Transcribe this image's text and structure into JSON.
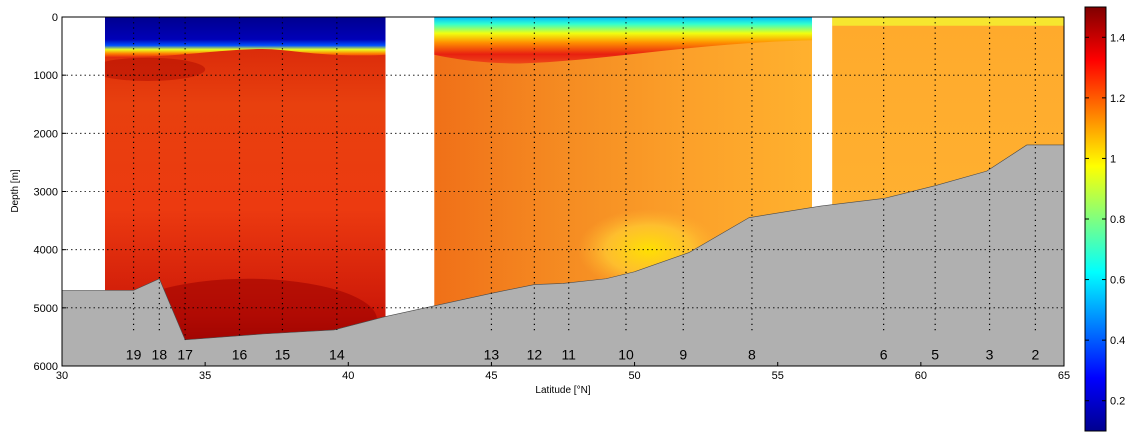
{
  "chart_data": {
    "type": "heatmap",
    "title": "",
    "xlabel": "Latitude [°N]",
    "ylabel": "Depth [m]",
    "xlim": [
      30,
      65
    ],
    "ylim": [
      0,
      6000
    ],
    "y_reversed": true,
    "x_ticks": [
      30,
      35,
      40,
      45,
      50,
      55,
      60,
      65
    ],
    "y_ticks": [
      0,
      1000,
      2000,
      3000,
      4000,
      5000,
      6000
    ],
    "grid": "dotted",
    "colorbar": {
      "colormap": "jet",
      "range": [
        0.1,
        1.5
      ],
      "ticks": [
        "0.2",
        "0.4",
        "0.6",
        "0.8",
        "1",
        "1.2",
        "1.4"
      ],
      "tick_values": [
        0.2,
        0.4,
        0.6,
        0.8,
        1.0,
        1.2,
        1.4
      ]
    },
    "bottom_profile": [
      [
        30,
        4700
      ],
      [
        32.5,
        4700
      ],
      [
        33.4,
        4500
      ],
      [
        34.3,
        5550
      ],
      [
        37,
        5450
      ],
      [
        39.5,
        5380
      ],
      [
        41.3,
        5150
      ],
      [
        45,
        4750
      ],
      [
        46.5,
        4600
      ],
      [
        47.5,
        4580
      ],
      [
        49,
        4500
      ],
      [
        50,
        4380
      ],
      [
        51.9,
        4050
      ],
      [
        54,
        3450
      ],
      [
        56.5,
        3250
      ],
      [
        58.7,
        3120
      ],
      [
        60.5,
        2900
      ],
      [
        62.3,
        2650
      ],
      [
        63.7,
        2200
      ],
      [
        65,
        2200
      ]
    ],
    "data_gaps": [
      [
        29.9,
        31.5
      ],
      [
        41.3,
        43
      ],
      [
        56.2,
        56.9
      ]
    ],
    "stations": [
      {
        "label": "19",
        "lat": 32.5,
        "bottom": 5400
      },
      {
        "label": "18",
        "lat": 33.4,
        "bottom": 5400
      },
      {
        "label": "17",
        "lat": 34.3,
        "bottom": 5550
      },
      {
        "label": "16",
        "lat": 36.2,
        "bottom": 5480
      },
      {
        "label": "15",
        "lat": 37.7,
        "bottom": 5440
      },
      {
        "label": "14",
        "lat": 39.6,
        "bottom": 5380
      },
      {
        "label": "13",
        "lat": 45.0,
        "bottom": 5400
      },
      {
        "label": "12",
        "lat": 46.5,
        "bottom": 5400
      },
      {
        "label": "11",
        "lat": 47.7,
        "bottom": 5400
      },
      {
        "label": "10",
        "lat": 49.7,
        "bottom": 5400
      },
      {
        "label": "9",
        "lat": 51.7,
        "bottom": 5400
      },
      {
        "label": "8",
        "lat": 54.1,
        "bottom": 5400
      },
      {
        "label": "6",
        "lat": 58.7,
        "bottom": 5400
      },
      {
        "label": "5",
        "lat": 60.5,
        "bottom": 5400
      },
      {
        "label": "3",
        "lat": 62.4,
        "bottom": 5400
      },
      {
        "label": "2",
        "lat": 64.0,
        "bottom": 5400
      }
    ],
    "surface_layer": {
      "west_low_value": 0.15,
      "west_base_depth_m": [
        650,
        600,
        500
      ],
      "east_low_value": 0.7,
      "mid_high_depth_m": 600,
      "deep_core_value": 1.45
    },
    "colors": {
      "ground": "#b0b0b0",
      "gap": "#ffffff",
      "grid": "#000000"
    }
  }
}
